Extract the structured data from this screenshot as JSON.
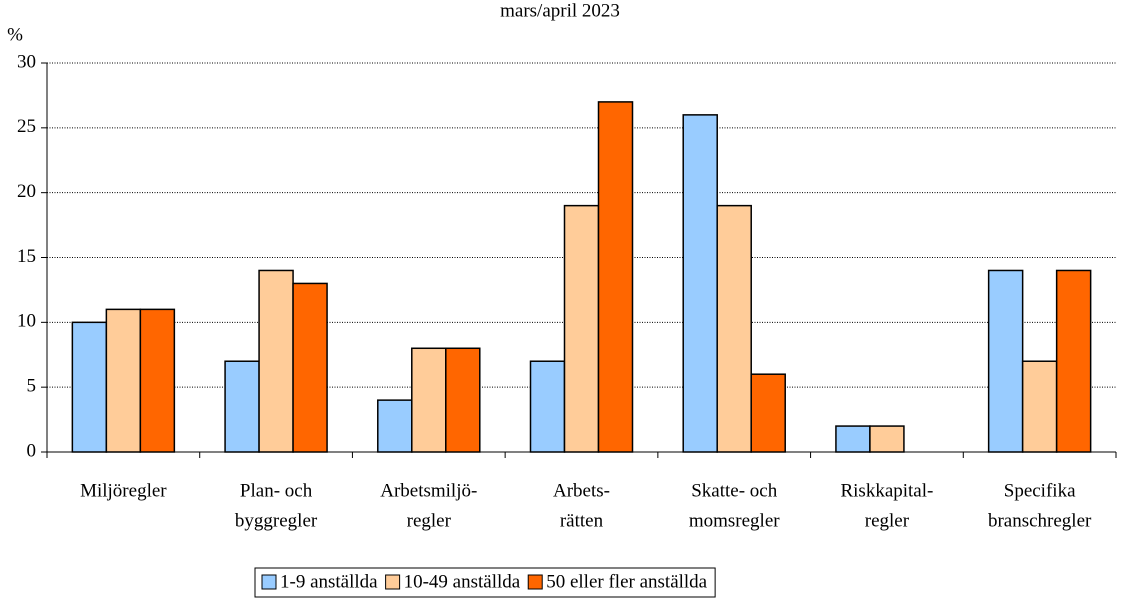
{
  "chart_data": {
    "type": "bar",
    "title": "mars/april 2023",
    "y_label": "%",
    "categories": [
      [
        "Miljöregler"
      ],
      [
        "Plan- och",
        "byggregler"
      ],
      [
        "Arbetsmiljö-",
        "regler"
      ],
      [
        "Arbets-",
        "rätten"
      ],
      [
        "Skatte- och",
        "momsregler"
      ],
      [
        "Riskkapital-",
        "regler"
      ],
      [
        "Specifika",
        "branschregler"
      ]
    ],
    "series": [
      {
        "name": "1-9 anställda",
        "color": "#99ccff",
        "values": [
          10,
          7,
          4,
          7,
          26,
          2,
          14
        ]
      },
      {
        "name": "10-49 anställda",
        "color": "#ffcc99",
        "values": [
          11,
          14,
          8,
          19,
          19,
          2,
          7
        ]
      },
      {
        "name": "50 eller fler anställda",
        "color": "#ff6600",
        "values": [
          11,
          13,
          8,
          27,
          6,
          0,
          14
        ]
      }
    ],
    "ylim": [
      0,
      30
    ],
    "yticks": [
      0,
      5,
      10,
      15,
      20,
      25,
      30
    ],
    "grid": true,
    "legend": "bottom"
  }
}
